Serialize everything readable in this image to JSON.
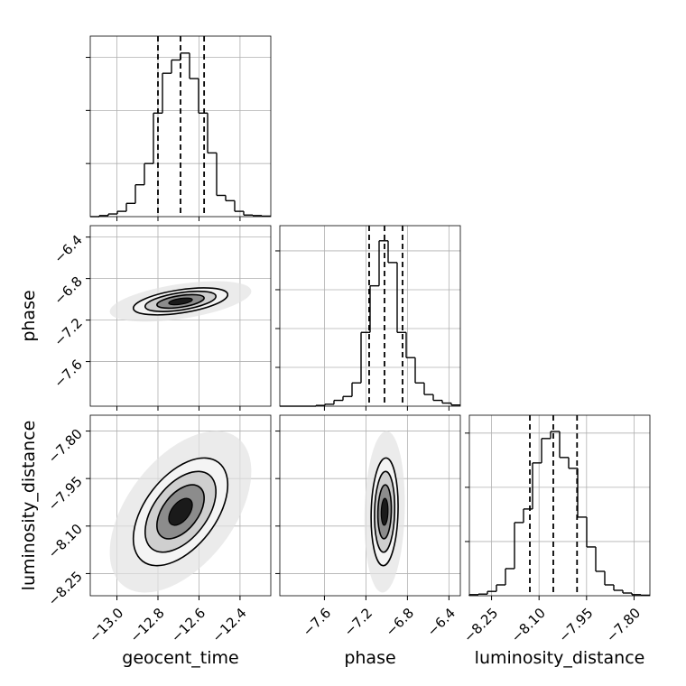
{
  "chart_data": {
    "type": "corner",
    "grid": true,
    "color": "#000000",
    "levels": [
      0.5,
      1,
      1.5,
      2
    ],
    "level_colors": [
      "#1a1a1a",
      "#8c8c8c",
      "#cfcfcf",
      "#f4f4f4"
    ],
    "cloud_level": 3,
    "cloud_color": "#e2e2e2",
    "parameters": [
      {
        "name": "geocent_time",
        "lim": [
          -13.13,
          -12.25
        ],
        "ticks": [
          {
            "value": -13.0,
            "label": "−13.0"
          },
          {
            "value": -12.8,
            "label": "−12.8"
          },
          {
            "value": -12.6,
            "label": "−12.6"
          },
          {
            "value": -12.4,
            "label": "−12.4"
          }
        ],
        "mean": -12.69,
        "sd": 0.115,
        "bins": [
          -13.13,
          -13.086,
          -13.042,
          -12.998,
          -12.954,
          -12.91,
          -12.866,
          -12.822,
          -12.778,
          -12.734,
          -12.69,
          -12.646,
          -12.602,
          -12.558,
          -12.514,
          -12.47,
          -12.426,
          -12.382,
          -12.338,
          -12.294,
          -12.25
        ],
        "counts": [
          0,
          0.02,
          0.05,
          0.1,
          0.25,
          0.6,
          1.0,
          1.95,
          2.7,
          2.95,
          3.08,
          2.6,
          1.95,
          1.2,
          0.4,
          0.3,
          0.1,
          0.03,
          0.02,
          0.01
        ],
        "hist_ylim": [
          0,
          3.4
        ],
        "hist_yticks": [
          1,
          2,
          3
        ],
        "quantiles": [
          -12.8,
          -12.69,
          -12.575
        ]
      },
      {
        "name": "phase",
        "lim": [
          -8.03,
          -6.29
        ],
        "ticks": [
          {
            "value": -7.6,
            "label": "−7.6"
          },
          {
            "value": -7.2,
            "label": "−7.2"
          },
          {
            "value": -6.8,
            "label": "−6.8"
          },
          {
            "value": -6.4,
            "label": "−6.4"
          }
        ],
        "mean": -7.02,
        "sd": 0.065,
        "bins": [
          -8.03,
          -7.943,
          -7.856,
          -7.769,
          -7.682,
          -7.595,
          -7.508,
          -7.421,
          -7.334,
          -7.247,
          -7.16,
          -7.073,
          -6.986,
          -6.899,
          -6.812,
          -6.725,
          -6.638,
          -6.551,
          -6.464,
          -6.377,
          -6.29
        ],
        "counts": [
          0,
          0,
          0,
          0,
          0.02,
          0.05,
          0.15,
          0.25,
          0.6,
          1.9,
          3.1,
          4.26,
          3.7,
          1.9,
          1.25,
          0.6,
          0.3,
          0.15,
          0.08,
          0.03
        ],
        "hist_ylim": [
          0,
          4.65
        ],
        "hist_yticks": [
          1,
          2,
          3,
          4
        ],
        "quantiles": [
          -7.169,
          -7.021,
          -6.847
        ]
      },
      {
        "name": "luminosity_distance",
        "lim": [
          -8.32,
          -7.75
        ],
        "ticks": [
          {
            "value": -8.25,
            "label": "−8.25"
          },
          {
            "value": -8.1,
            "label": "−8.10"
          },
          {
            "value": -7.95,
            "label": "−7.95"
          },
          {
            "value": -7.8,
            "label": "−7.80"
          }
        ],
        "mean": -8.055,
        "sd": 0.085,
        "bins": [
          -8.32,
          -8.2915,
          -8.263,
          -8.2345,
          -8.206,
          -8.1775,
          -8.149,
          -8.1205,
          -8.092,
          -8.0635,
          -8.035,
          -8.0065,
          -7.978,
          -7.9495,
          -7.921,
          -7.8925,
          -7.864,
          -7.8355,
          -7.807,
          -7.7785,
          -7.75
        ],
        "counts": [
          0.02,
          0.03,
          0.08,
          0.2,
          0.5,
          1.35,
          1.6,
          2.45,
          2.9,
          3.03,
          2.55,
          2.35,
          1.45,
          0.9,
          0.45,
          0.2,
          0.1,
          0.05,
          0.02,
          0.01
        ],
        "hist_ylim": [
          0,
          3.33
        ],
        "hist_yticks": [
          1,
          2,
          3
        ],
        "quantiles": [
          -8.129,
          -8.055,
          -7.98
        ]
      }
    ],
    "correlations": [
      [],
      [
        0.5
      ],
      [
        0.5,
        0.1
      ]
    ]
  }
}
